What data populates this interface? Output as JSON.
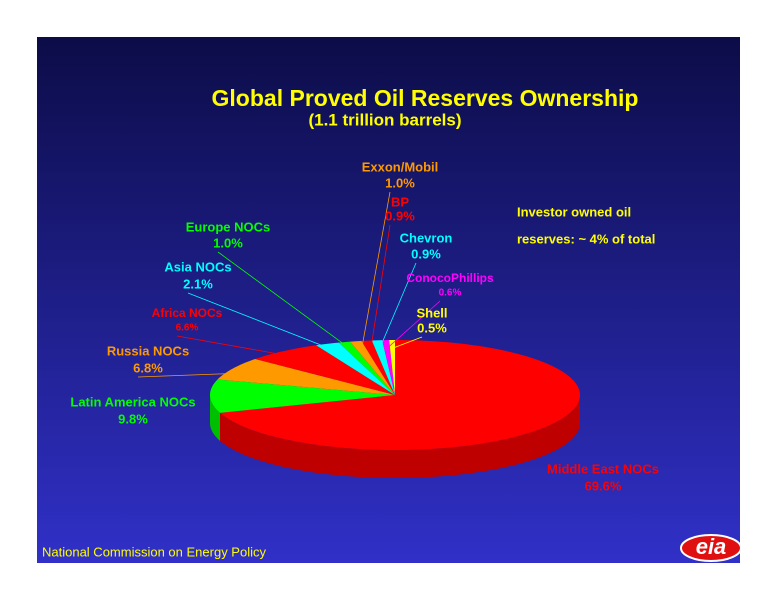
{
  "chart_data": {
    "type": "pie",
    "title": "Global Proved Oil Reserves Ownership",
    "subtitle": "(1.1 trillion barrels)",
    "categories": [
      "Middle East NOCs",
      "Latin America NOCs",
      "Russia NOCs",
      "Africa NOCs",
      "Asia NOCs",
      "Europe NOCs",
      "Exxon/Mobil",
      "BP",
      "Chevron",
      "ConocoPhillips",
      "Shell"
    ],
    "values": [
      69.6,
      9.8,
      6.8,
      6.6,
      2.1,
      1.0,
      1.0,
      0.9,
      0.9,
      0.6,
      0.5
    ],
    "value_labels": [
      "69.6%",
      "9.8%",
      "6.8%",
      "6.6%",
      "2.1%",
      "1.0%",
      "1.0%",
      "0.9%",
      "0.9%",
      "0.6%",
      "0.5%"
    ],
    "colors": [
      "#ff0000",
      "#00ff00",
      "#ff9900",
      "#ff0000",
      "#00ffff",
      "#00ff00",
      "#ff9900",
      "#ff0000",
      "#00ffff",
      "#ff00ff",
      "#ffff00"
    ],
    "annotation": [
      "Investor owned oil",
      "reserves: ~ 4% of total"
    ],
    "source": "National Commission on Energy Policy",
    "logo": "eia"
  }
}
